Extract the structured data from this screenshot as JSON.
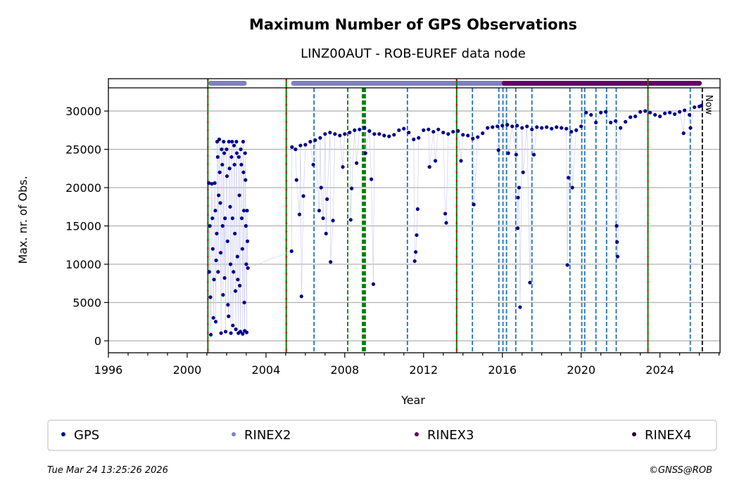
{
  "chart_data": {
    "type": "scatter",
    "title": "Maximum Number of GPS Observations",
    "subtitle": "LINZ00AUT - ROB-EUREF data node",
    "xlabel": "Year",
    "ylabel": "Max. nr. of Obs.",
    "xlim": [
      1996,
      2027.05
    ],
    "ylim": [
      -1560,
      33030
    ],
    "grid": "horizontal",
    "x_ticks": [
      1996,
      2000,
      2004,
      2008,
      2012,
      2016,
      2020,
      2024
    ],
    "x_tick_labels": [
      "1996",
      "2000",
      "2004",
      "2008",
      "2012",
      "2016",
      "2020",
      "2024"
    ],
    "y_ticks": [
      0,
      5000,
      10000,
      15000,
      20000,
      25000,
      30000
    ],
    "y_tick_labels": [
      "0",
      "5000",
      "10000",
      "15000",
      "20000",
      "25000",
      "30000"
    ],
    "colors": {
      "GPS": "#00008b",
      "RINEX2": "#8080c0",
      "RINEX3": "#660066",
      "RINEX4": "#220022",
      "blue_event": "#1f6fc0",
      "green_event": "#008000",
      "red_event": "#e00000"
    },
    "legend": {
      "placement": "bottom",
      "entries": [
        "GPS",
        "RINEX2",
        "RINEX3",
        "RINEX4"
      ]
    },
    "rinex_bands": [
      {
        "format": "RINEX2",
        "start": 2001.2,
        "end": 2002.9
      },
      {
        "format": "RINEX2",
        "start": 2005.4,
        "end": 2016.1
      },
      {
        "format": "RINEX3",
        "start": 2016.1,
        "end": 2026.0
      }
    ],
    "event_lines": [
      {
        "type": "red-green",
        "x": 2001.05
      },
      {
        "type": "red-green",
        "x": 2005.03
      },
      {
        "type": "blue",
        "x": 2006.44
      },
      {
        "type": "green",
        "x": 2008.15
      },
      {
        "type": "green-thick",
        "x": 2008.92
      },
      {
        "type": "green-thick",
        "x": 2009.02
      },
      {
        "type": "blue",
        "x": 2011.18
      },
      {
        "type": "red-green",
        "x": 2013.68
      },
      {
        "type": "blue",
        "x": 2014.48
      },
      {
        "type": "blue",
        "x": 2015.82
      },
      {
        "type": "blue",
        "x": 2016.03
      },
      {
        "type": "blue",
        "x": 2016.21
      },
      {
        "type": "blue",
        "x": 2016.68
      },
      {
        "type": "blue",
        "x": 2017.5
      },
      {
        "type": "blue",
        "x": 2019.43
      },
      {
        "type": "blue",
        "x": 2020.03
      },
      {
        "type": "blue",
        "x": 2020.18
      },
      {
        "type": "blue",
        "x": 2020.75
      },
      {
        "type": "blue",
        "x": 2021.29
      },
      {
        "type": "blue",
        "x": 2021.78
      },
      {
        "type": "red-green",
        "x": 2023.39
      },
      {
        "type": "blue",
        "x": 2025.54
      },
      {
        "type": "now",
        "x": 2026.15
      }
    ],
    "now_label": "Now",
    "series": [
      {
        "name": "GPS",
        "points": [
          [
            2001.1,
            20600
          ],
          [
            2001.12,
            9000
          ],
          [
            2001.15,
            15000
          ],
          [
            2001.18,
            5700
          ],
          [
            2001.2,
            800
          ],
          [
            2001.25,
            20500
          ],
          [
            2001.28,
            16000
          ],
          [
            2001.3,
            12000
          ],
          [
            2001.33,
            3000
          ],
          [
            2001.36,
            8000
          ],
          [
            2001.4,
            20600
          ],
          [
            2001.43,
            17000
          ],
          [
            2001.45,
            2500
          ],
          [
            2001.47,
            10500
          ],
          [
            2001.5,
            14000
          ],
          [
            2001.52,
            26000
          ],
          [
            2001.55,
            24000
          ],
          [
            2001.57,
            9000
          ],
          [
            2001.6,
            19000
          ],
          [
            2001.63,
            26300
          ],
          [
            2001.65,
            22000
          ],
          [
            2001.68,
            18000
          ],
          [
            2001.7,
            11500
          ],
          [
            2001.72,
            1000
          ],
          [
            2001.75,
            25000
          ],
          [
            2001.78,
            23000
          ],
          [
            2001.8,
            15000
          ],
          [
            2001.82,
            6000
          ],
          [
            2001.85,
            26000
          ],
          [
            2001.88,
            24500
          ],
          [
            2001.9,
            8200
          ],
          [
            2001.92,
            16000
          ],
          [
            2001.95,
            1200
          ],
          [
            2002.0,
            25000
          ],
          [
            2002.02,
            21500
          ],
          [
            2002.05,
            13000
          ],
          [
            2002.07,
            4700
          ],
          [
            2002.1,
            3200
          ],
          [
            2002.12,
            26000
          ],
          [
            2002.15,
            22500
          ],
          [
            2002.18,
            17500
          ],
          [
            2002.2,
            10000
          ],
          [
            2002.22,
            1000
          ],
          [
            2002.25,
            24000
          ],
          [
            2002.28,
            26000
          ],
          [
            2002.3,
            16000
          ],
          [
            2002.32,
            2000
          ],
          [
            2002.35,
            9000
          ],
          [
            2002.38,
            25500
          ],
          [
            2002.4,
            23000
          ],
          [
            2002.42,
            14000
          ],
          [
            2002.45,
            6500
          ],
          [
            2002.47,
            1500
          ],
          [
            2002.5,
            26000
          ],
          [
            2002.52,
            24500
          ],
          [
            2002.55,
            11000
          ],
          [
            2002.57,
            8000
          ],
          [
            2002.6,
            1000
          ],
          [
            2002.62,
            24000
          ],
          [
            2002.65,
            19000
          ],
          [
            2002.67,
            7200
          ],
          [
            2002.7,
            1200
          ],
          [
            2002.72,
            25000
          ],
          [
            2002.75,
            23000
          ],
          [
            2002.77,
            16000
          ],
          [
            2002.8,
            12000
          ],
          [
            2002.82,
            900
          ],
          [
            2002.84,
            26000
          ],
          [
            2002.86,
            22000
          ],
          [
            2002.88,
            17000
          ],
          [
            2002.9,
            5000
          ],
          [
            2002.92,
            1300
          ],
          [
            2002.94,
            24500
          ],
          [
            2002.96,
            21000
          ],
          [
            2002.98,
            15000
          ],
          [
            2003.0,
            10000
          ],
          [
            2003.02,
            1100
          ],
          [
            2003.04,
            17000
          ],
          [
            2003.06,
            13000
          ],
          [
            2003.08,
            9500
          ],
          [
            2005.3,
            11700
          ],
          [
            2005.32,
            25300
          ],
          [
            2005.5,
            25000
          ],
          [
            2005.55,
            21000
          ],
          [
            2005.7,
            16500
          ],
          [
            2005.75,
            25500
          ],
          [
            2005.8,
            5800
          ],
          [
            2005.9,
            18900
          ],
          [
            2006.0,
            25600
          ],
          [
            2006.25,
            26000
          ],
          [
            2006.4,
            23000
          ],
          [
            2006.5,
            26200
          ],
          [
            2006.7,
            17000
          ],
          [
            2006.75,
            26500
          ],
          [
            2006.8,
            20000
          ],
          [
            2006.9,
            16000
          ],
          [
            2007.0,
            27000
          ],
          [
            2007.05,
            14000
          ],
          [
            2007.1,
            18500
          ],
          [
            2007.25,
            27200
          ],
          [
            2007.28,
            10300
          ],
          [
            2007.4,
            15700
          ],
          [
            2007.5,
            27000
          ],
          [
            2007.75,
            26800
          ],
          [
            2007.9,
            22700
          ],
          [
            2008.0,
            27000
          ],
          [
            2008.25,
            27200
          ],
          [
            2008.3,
            15800
          ],
          [
            2008.35,
            19900
          ],
          [
            2008.5,
            27500
          ],
          [
            2008.6,
            23200
          ],
          [
            2008.75,
            27600
          ],
          [
            2009.0,
            27800
          ],
          [
            2009.05,
            24500
          ],
          [
            2009.25,
            27400
          ],
          [
            2009.35,
            21100
          ],
          [
            2009.45,
            7400
          ],
          [
            2009.5,
            27000
          ],
          [
            2009.75,
            27000
          ],
          [
            2010.0,
            26800
          ],
          [
            2010.25,
            26700
          ],
          [
            2010.5,
            26900
          ],
          [
            2010.75,
            27500
          ],
          [
            2011.0,
            27700
          ],
          [
            2011.25,
            27200
          ],
          [
            2011.5,
            26300
          ],
          [
            2011.55,
            10400
          ],
          [
            2011.6,
            11600
          ],
          [
            2011.65,
            13800
          ],
          [
            2011.7,
            17200
          ],
          [
            2011.75,
            26500
          ],
          [
            2012.0,
            27500
          ],
          [
            2012.25,
            27600
          ],
          [
            2012.3,
            22700
          ],
          [
            2012.5,
            27300
          ],
          [
            2012.6,
            23500
          ],
          [
            2012.75,
            27600
          ],
          [
            2013.0,
            27200
          ],
          [
            2013.1,
            16600
          ],
          [
            2013.15,
            15400
          ],
          [
            2013.25,
            27000
          ],
          [
            2013.5,
            27300
          ],
          [
            2013.75,
            27400
          ],
          [
            2013.9,
            23500
          ],
          [
            2014.0,
            26900
          ],
          [
            2014.25,
            26800
          ],
          [
            2014.5,
            26400
          ],
          [
            2014.55,
            17800
          ],
          [
            2014.75,
            26600
          ],
          [
            2015.0,
            27100
          ],
          [
            2015.25,
            27800
          ],
          [
            2015.5,
            27900
          ],
          [
            2015.75,
            28000
          ],
          [
            2015.8,
            24900
          ],
          [
            2016.0,
            28100
          ],
          [
            2016.25,
            28200
          ],
          [
            2016.3,
            24500
          ],
          [
            2016.5,
            28000
          ],
          [
            2016.7,
            24300
          ],
          [
            2016.75,
            28100
          ],
          [
            2016.78,
            14700
          ],
          [
            2016.8,
            18700
          ],
          [
            2016.85,
            20000
          ],
          [
            2016.9,
            4400
          ],
          [
            2017.0,
            27800
          ],
          [
            2017.05,
            22000
          ],
          [
            2017.25,
            28000
          ],
          [
            2017.4,
            7600
          ],
          [
            2017.5,
            27600
          ],
          [
            2017.6,
            24300
          ],
          [
            2017.75,
            27900
          ],
          [
            2018.0,
            27800
          ],
          [
            2018.25,
            27900
          ],
          [
            2018.5,
            27700
          ],
          [
            2018.75,
            27900
          ],
          [
            2019.0,
            27800
          ],
          [
            2019.25,
            27700
          ],
          [
            2019.3,
            9900
          ],
          [
            2019.35,
            21300
          ],
          [
            2019.5,
            27300
          ],
          [
            2019.55,
            20000
          ],
          [
            2019.75,
            27500
          ],
          [
            2020.0,
            28000
          ],
          [
            2020.25,
            29800
          ],
          [
            2020.5,
            29500
          ],
          [
            2020.75,
            28500
          ],
          [
            2021.0,
            29800
          ],
          [
            2021.25,
            29900
          ],
          [
            2021.5,
            28500
          ],
          [
            2021.75,
            28700
          ],
          [
            2021.8,
            15000
          ],
          [
            2021.82,
            12900
          ],
          [
            2021.85,
            11000
          ],
          [
            2022.0,
            27800
          ],
          [
            2022.25,
            28600
          ],
          [
            2022.5,
            29200
          ],
          [
            2022.75,
            29300
          ],
          [
            2023.0,
            29900
          ],
          [
            2023.25,
            30000
          ],
          [
            2023.5,
            29800
          ],
          [
            2023.75,
            29500
          ],
          [
            2024.0,
            29300
          ],
          [
            2024.25,
            29700
          ],
          [
            2024.5,
            29800
          ],
          [
            2024.75,
            29600
          ],
          [
            2025.0,
            29900
          ],
          [
            2025.2,
            27100
          ],
          [
            2025.25,
            30100
          ],
          [
            2025.5,
            29500
          ],
          [
            2025.55,
            27800
          ],
          [
            2025.75,
            30500
          ],
          [
            2026.0,
            30600
          ],
          [
            2026.1,
            30700
          ]
        ]
      }
    ]
  },
  "footer": {
    "timestamp": "Tue Mar 24 13:25:26 2026",
    "copyright": "©GNSS@ROB"
  }
}
